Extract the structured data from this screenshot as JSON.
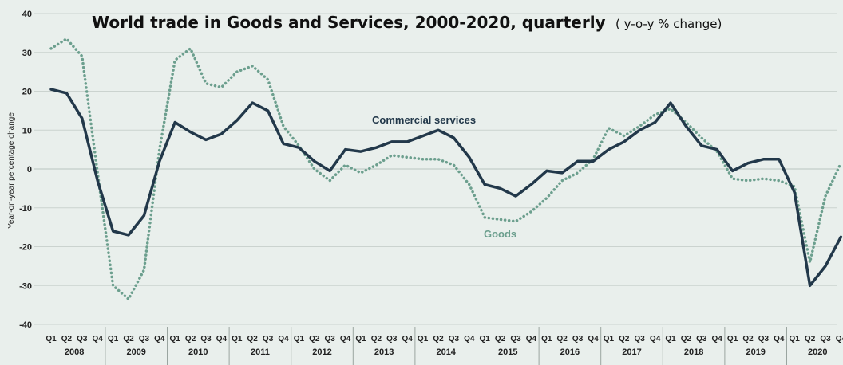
{
  "chart_data": {
    "type": "line",
    "title": "World trade in Goods and Services, 2000-2020, quarterly",
    "subtitle": "( y-o-y % change)",
    "ylabel": "Year-on-year percentage change",
    "ylim": [
      -40,
      40
    ],
    "yticks": [
      40,
      30,
      20,
      10,
      0,
      -10,
      -20,
      -30,
      -40
    ],
    "grid": true,
    "quarter_labels": [
      "Q1",
      "Q2",
      "Q3",
      "Q4"
    ],
    "years": [
      "2008",
      "2009",
      "2010",
      "2011",
      "2012",
      "2013",
      "2014",
      "2015",
      "2016",
      "2017",
      "2018",
      "2019",
      "2020"
    ],
    "series": [
      {
        "name": "Commercial services",
        "color": "#22384a",
        "style": "solid",
        "values": [
          20.5,
          19.5,
          13,
          -3,
          -16,
          -17,
          -12,
          2,
          12,
          9.5,
          7.5,
          9,
          12.5,
          17,
          15,
          6.5,
          5.5,
          2,
          -0.5,
          5,
          4.5,
          5.5,
          7,
          7,
          8.5,
          10,
          8,
          3,
          -4,
          -5,
          -7,
          -4,
          -0.5,
          -1,
          2,
          2,
          5,
          7,
          10,
          12,
          17,
          11,
          6,
          5,
          -0.5,
          1.5,
          2.5,
          2.5,
          -6,
          -30,
          -25,
          -17.5
        ]
      },
      {
        "name": "Goods",
        "color": "#6c9f8e",
        "style": "dotted",
        "values": [
          31,
          33.5,
          29,
          -1,
          -30,
          -33.5,
          -26,
          5,
          28,
          31,
          22,
          21,
          25,
          26.5,
          23,
          11,
          6,
          0,
          -3,
          1,
          -1,
          1,
          3.5,
          3,
          2.5,
          2.5,
          1,
          -4,
          -12.5,
          -13,
          -13.5,
          -11,
          -7.5,
          -3,
          -1,
          2.5,
          10.5,
          8.5,
          11,
          14,
          15.5,
          12,
          8,
          4.5,
          -2.5,
          -3,
          -2.5,
          -3,
          -4.5,
          -24,
          -7,
          1.5
        ]
      }
    ]
  }
}
